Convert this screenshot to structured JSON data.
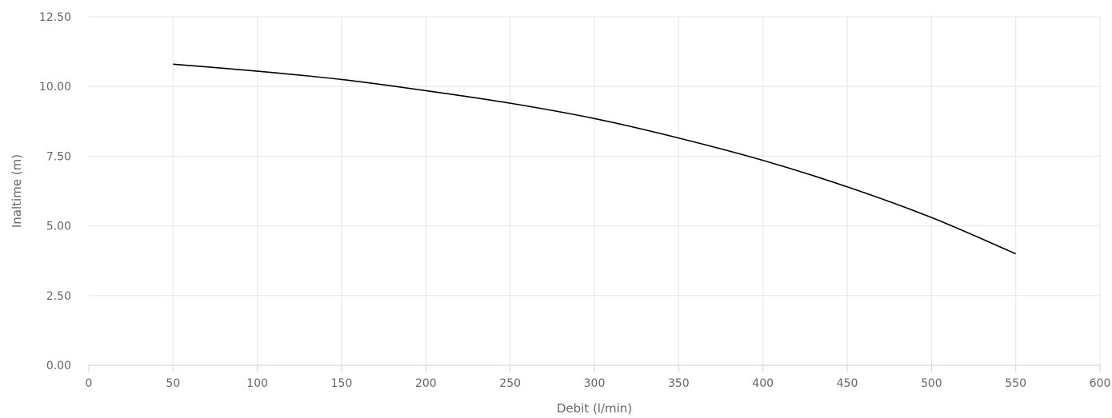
{
  "chart_data": {
    "type": "line",
    "title": "",
    "xlabel": "Debit (l/min)",
    "ylabel": "Inaltime (m)",
    "xlim": [
      0,
      600
    ],
    "ylim": [
      0,
      12.5
    ],
    "x_ticks": [
      "0",
      "50",
      "100",
      "150",
      "200",
      "250",
      "300",
      "350",
      "400",
      "450",
      "500",
      "550",
      "600"
    ],
    "y_ticks": [
      "0.00",
      "2.50",
      "5.00",
      "7.50",
      "10.00",
      "12.50"
    ],
    "grid": true,
    "legend": "none",
    "line_color": "#000000",
    "series": [
      {
        "x": [
          50,
          100,
          150,
          200,
          250,
          300,
          350,
          400,
          450,
          500,
          550
        ],
        "values": [
          10.8,
          10.55,
          10.25,
          9.85,
          9.4,
          8.85,
          8.15,
          7.35,
          6.4,
          5.3,
          4.0
        ]
      }
    ]
  }
}
